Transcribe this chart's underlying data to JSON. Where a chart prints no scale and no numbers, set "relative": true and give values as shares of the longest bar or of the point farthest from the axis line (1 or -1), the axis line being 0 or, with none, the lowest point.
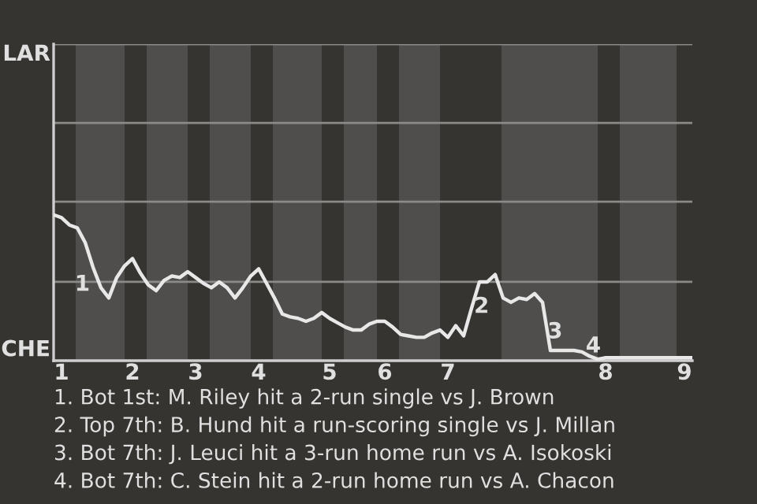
{
  "chart_data": {
    "type": "line",
    "relative": true,
    "categories": [
      null,
      "1",
      null,
      null,
      null,
      null,
      null,
      null,
      null,
      null,
      "2",
      null,
      null,
      null,
      null,
      null,
      null,
      null,
      "3",
      null,
      null,
      null,
      null,
      null,
      null,
      null,
      "4",
      null,
      null,
      null,
      null,
      null,
      null,
      null,
      null,
      "5",
      null,
      null,
      null,
      null,
      null,
      null,
      "6",
      null,
      null,
      null,
      null,
      null,
      null,
      null,
      "7",
      null,
      null,
      null,
      null,
      null,
      null,
      null,
      null,
      null,
      null,
      null,
      null,
      null,
      null,
      null,
      null,
      null,
      null,
      null,
      "8",
      null,
      null,
      null,
      null,
      null,
      null,
      null,
      null,
      null,
      "9",
      null
    ],
    "series": [
      {
        "color": "#e8e8e8",
        "values": [
          1.0,
          0.98,
          0.93,
          0.91,
          0.81,
          0.64,
          0.5,
          0.43,
          0.57,
          0.65,
          0.7,
          0.6,
          0.52,
          0.48,
          0.55,
          0.58,
          0.57,
          0.61,
          0.57,
          0.53,
          0.5,
          0.54,
          0.5,
          0.43,
          0.5,
          0.58,
          0.63,
          0.53,
          0.43,
          0.32,
          0.3,
          0.29,
          0.27,
          0.29,
          0.33,
          0.29,
          0.26,
          0.23,
          0.21,
          0.21,
          0.25,
          0.27,
          0.27,
          0.23,
          0.18,
          0.17,
          0.16,
          0.16,
          0.19,
          0.21,
          0.16,
          0.24,
          0.17,
          0.36,
          0.54,
          0.54,
          0.59,
          0.43,
          0.4,
          0.43,
          0.42,
          0.46,
          0.4,
          0.07,
          0.07,
          0.07,
          0.07,
          0.06,
          0.03,
          0.01,
          0.02,
          0.02,
          0.02,
          0.02,
          0.02,
          0.02,
          0.02,
          0.02,
          0.02,
          0.02,
          0.02,
          0.02
        ],
        "name": null
      }
    ],
    "tick_labels": "x",
    "ref_lines": [
      {
        "axis": "y",
        "value": 0.54,
        "color": "#8a8a88"
      },
      {
        "axis": "y",
        "value": 1.09,
        "color": "#8a8a88"
      },
      {
        "axis": "y",
        "value": 1.63,
        "color": "#8a8a88"
      },
      {
        "axis": "y",
        "value": 2.17,
        "color": "#8a8a88"
      }
    ],
    "annotations": [
      "LAR",
      "CHE",
      "1",
      "2",
      "3",
      "4",
      "1. Bot 1st: M. Riley hit a 2-run single vs J. Brown",
      "2. Top 7th: B. Hund hit a run-scoring single vs J. Millan",
      "3. Bot 7th: J. Leuci hit a 3-run home run vs A. Isokoski",
      "4. Bot 7th: C. Stein hit a 2-run home run vs A. Chacon"
    ]
  }
}
